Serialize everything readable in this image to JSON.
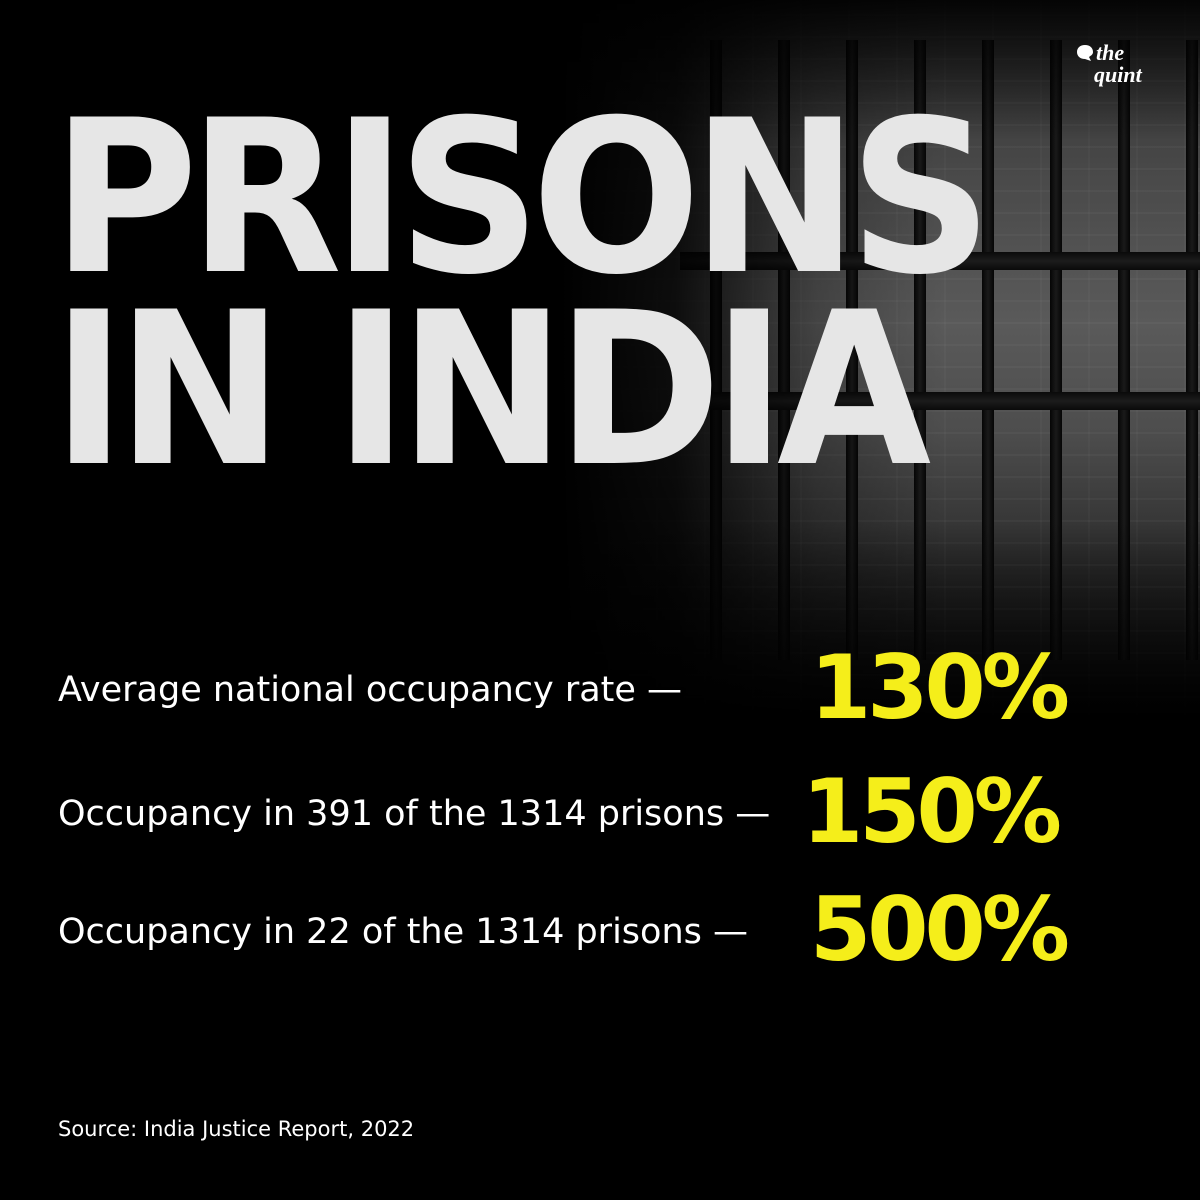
{
  "brand": {
    "logo_line1": "the",
    "logo_line2": "quint",
    "logo_icon": "speech-bubble-icon"
  },
  "title": {
    "line1": "PRISONS",
    "line2": "IN INDIA"
  },
  "colors": {
    "background": "#000000",
    "title": "#e6e6e6",
    "text": "#ffffff",
    "accent": "#f5ee1a"
  },
  "stats": [
    {
      "label": "Average national occupancy rate —",
      "value": "130%"
    },
    {
      "label": "Occupancy in 391 of the 1314 prisons —",
      "value": "150%"
    },
    {
      "label": "Occupancy in 22 of the 1314 prisons —",
      "value": "500%"
    }
  ],
  "source": "Source: India Justice Report, 2022"
}
